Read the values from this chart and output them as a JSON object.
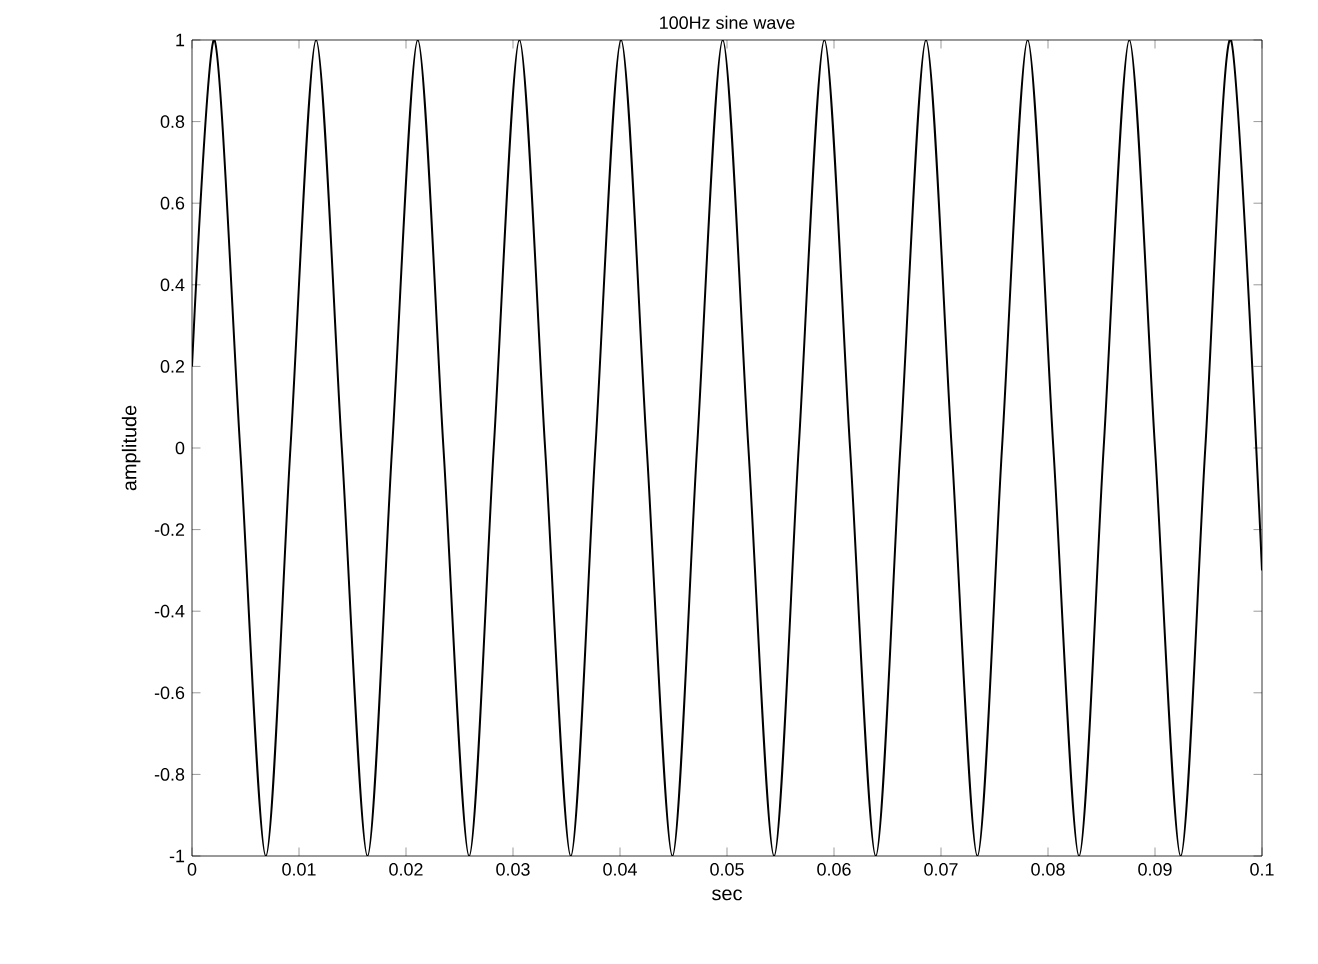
{
  "chart_data": {
    "type": "line",
    "title": "100Hz sine wave",
    "xlabel": "sec",
    "ylabel": "amplitude",
    "xlim": [
      0,
      0.1
    ],
    "ylim": [
      -1,
      1
    ],
    "xticks": [
      0,
      0.01,
      0.02,
      0.03,
      0.04,
      0.05,
      0.06,
      0.07,
      0.08,
      0.09,
      0.1
    ],
    "yticks": [
      -1,
      -0.8,
      -0.6,
      -0.4,
      -0.2,
      0,
      0.2,
      0.4,
      0.6,
      0.8,
      1
    ],
    "grid": false,
    "series": [
      {
        "color": "#000000",
        "x": [
          0,
          0.0021,
          0.0045,
          0.0069,
          0.0092,
          0.0116,
          0.014,
          0.0164,
          0.0187,
          0.0211,
          0.0235,
          0.0259,
          0.0282,
          0.0306,
          0.033,
          0.0354,
          0.0377,
          0.0401,
          0.0425,
          0.0449,
          0.0472,
          0.0496,
          0.052,
          0.0544,
          0.0567,
          0.0591,
          0.0615,
          0.0639,
          0.0662,
          0.0686,
          0.071,
          0.0734,
          0.0757,
          0.0781,
          0.0805,
          0.0829,
          0.0852,
          0.0876,
          0.09,
          0.0924,
          0.0947,
          0.0971,
          0.1
        ],
        "values": [
          0.2,
          1,
          0,
          -1,
          0,
          1,
          0,
          -1,
          0,
          1,
          0,
          -1,
          0,
          1,
          0,
          -1,
          0,
          1,
          0,
          -1,
          0,
          1,
          0,
          -1,
          0,
          1,
          0,
          -1,
          0,
          1,
          0,
          -1,
          0,
          1,
          0,
          -1,
          0,
          1,
          0,
          -1,
          0,
          1,
          -0.3
        ]
      }
    ]
  }
}
